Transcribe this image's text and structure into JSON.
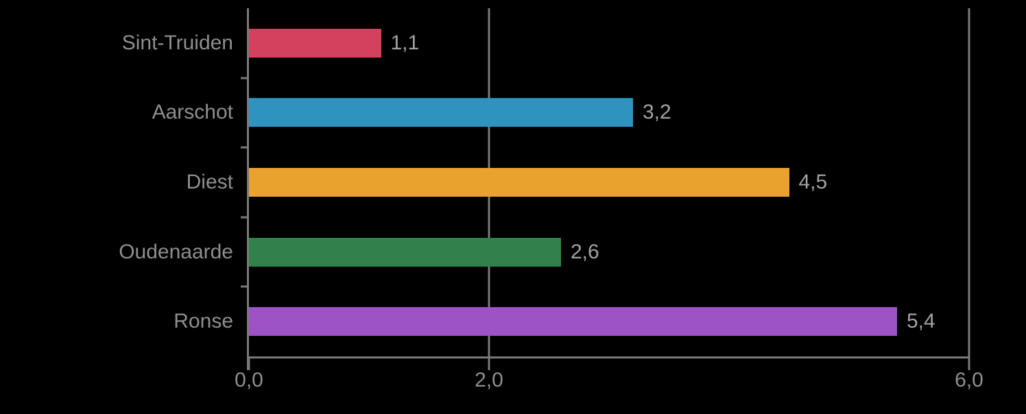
{
  "chart_data": {
    "type": "bar",
    "orientation": "horizontal",
    "title": "",
    "xlabel": "",
    "ylabel": "",
    "categories": [
      "Sint-Truiden",
      "Aarschot",
      "Diest",
      "Oudenaarde",
      "Ronse"
    ],
    "values": [
      1.1,
      3.2,
      4.5,
      2.6,
      5.4
    ],
    "value_labels": [
      "1,1",
      "3,2",
      "4,5",
      "2,6",
      "5,4"
    ],
    "bar_colors": [
      "#d4415f",
      "#2f93c0",
      "#e9a22e",
      "#32814a",
      "#9d52c5"
    ],
    "xlim": [
      0,
      6
    ],
    "x_ticks": [
      {
        "value": 0,
        "label": "0,0"
      },
      {
        "value": 2,
        "label": "2,0"
      },
      {
        "value": 6,
        "label": "6,0"
      }
    ],
    "grid": "vertical gridlines at labeled ticks only (2,0 and 6,0); no 4,0 line",
    "legend": null,
    "background_color": "#000000",
    "axis_color": "#7a7a7a",
    "category_label_color": "#8f8f8f",
    "value_label_color": "#a3a3a3"
  }
}
